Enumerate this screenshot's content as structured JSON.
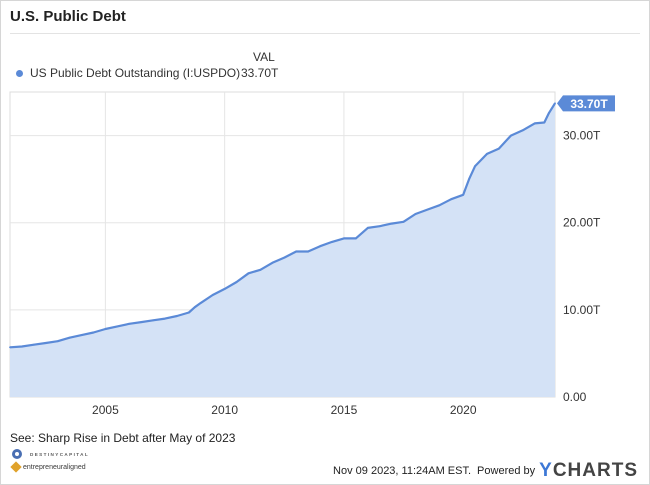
{
  "title": "U.S. Public Debt",
  "legend": {
    "header": "VAL",
    "series_label": "US Public Debt Outstanding (I:USPDO)",
    "series_value": "33.70T",
    "color": "#5b8ad7"
  },
  "footnote": "See: Sharp Rise in Debt after May of 2023",
  "logos": {
    "destiny": "DESTINYCAPITAL",
    "entrepreneur": "entrepreneuraligned"
  },
  "footer": {
    "timestamp": "Nov 09 2023, 11:24AM EST.",
    "powered_by": "Powered by",
    "brand_y": "Y",
    "brand_rest": "CHARTS"
  },
  "colors": {
    "line": "#5b8ad7",
    "fill": "#d4e2f6",
    "badge": "#5b8ad7",
    "grid": "#e5e5e5"
  },
  "chart_data": {
    "type": "area",
    "series": [
      {
        "name": "US Public Debt Outstanding (I:USPDO)",
        "x": [
          2001.0,
          2001.5,
          2002.0,
          2002.5,
          2003.0,
          2003.5,
          2004.0,
          2004.5,
          2005.0,
          2005.5,
          2006.0,
          2006.5,
          2007.0,
          2007.5,
          2008.0,
          2008.5,
          2008.75,
          2009.0,
          2009.5,
          2010.0,
          2010.5,
          2011.0,
          2011.5,
          2012.0,
          2012.5,
          2013.0,
          2013.5,
          2014.0,
          2014.5,
          2015.0,
          2015.5,
          2016.0,
          2016.5,
          2017.0,
          2017.5,
          2018.0,
          2018.5,
          2019.0,
          2019.5,
          2020.0,
          2020.25,
          2020.5,
          2021.0,
          2021.5,
          2022.0,
          2022.5,
          2023.0,
          2023.4,
          2023.6,
          2023.85
        ],
        "values": [
          5.7,
          5.8,
          6.0,
          6.2,
          6.4,
          6.8,
          7.1,
          7.4,
          7.8,
          8.1,
          8.4,
          8.6,
          8.8,
          9.0,
          9.3,
          9.7,
          10.3,
          10.8,
          11.7,
          12.4,
          13.2,
          14.2,
          14.6,
          15.4,
          16.0,
          16.7,
          16.7,
          17.3,
          17.8,
          18.2,
          18.2,
          19.4,
          19.6,
          19.9,
          20.1,
          21.0,
          21.5,
          22.0,
          22.7,
          23.2,
          25.0,
          26.5,
          27.9,
          28.5,
          30.0,
          30.6,
          31.4,
          31.5,
          32.6,
          33.7
        ]
      }
    ],
    "xlim": [
      2001.0,
      2023.85
    ],
    "ylim": [
      0,
      35
    ],
    "x_ticks": [
      "2005",
      "2010",
      "2015",
      "2020"
    ],
    "x_tick_values": [
      2005,
      2010,
      2015,
      2020
    ],
    "y_ticks": [
      "0.00",
      "10.00T",
      "20.00T",
      "30.00T"
    ],
    "y_tick_values": [
      0,
      10,
      20,
      30
    ],
    "last_value_label": "33.70T",
    "grid": true,
    "y_axis_position": "right"
  }
}
